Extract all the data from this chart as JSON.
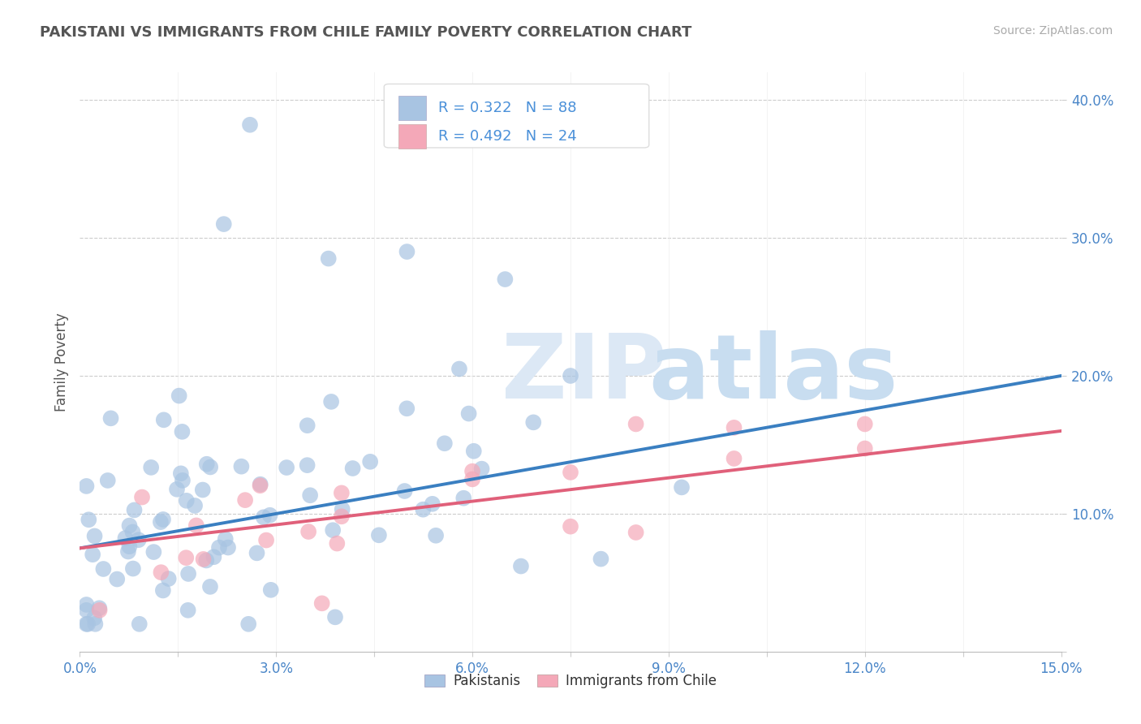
{
  "title": "PAKISTANI VS IMMIGRANTS FROM CHILE FAMILY POVERTY CORRELATION CHART",
  "source": "Source: ZipAtlas.com",
  "ylabel": "Family Poverty",
  "xlim": [
    0.0,
    0.15
  ],
  "ylim": [
    0.0,
    0.42
  ],
  "xticks": [
    0.0,
    0.015,
    0.03,
    0.045,
    0.06,
    0.075,
    0.09,
    0.105,
    0.12,
    0.135,
    0.15
  ],
  "xtick_labels": [
    "0.0%",
    "",
    "3.0%",
    "",
    "6.0%",
    "",
    "9.0%",
    "",
    "12.0%",
    "",
    "15.0%"
  ],
  "yticks": [
    0.0,
    0.1,
    0.2,
    0.3,
    0.4
  ],
  "ytick_labels": [
    "",
    "10.0%",
    "20.0%",
    "30.0%",
    "40.0%"
  ],
  "pakistani_R": 0.322,
  "pakistani_N": 88,
  "chile_R": 0.492,
  "chile_N": 24,
  "pakistani_color": "#a8c4e2",
  "chile_color": "#f4a8b8",
  "pakistani_line_color": "#3a7fc1",
  "chile_line_color": "#e0607a",
  "legend_text_color": "#4a90d9",
  "tick_color": "#4a86c8",
  "background_color": "#ffffff",
  "grid_color": "#cccccc",
  "title_color": "#555555",
  "ylabel_color": "#555555",
  "source_color": "#aaaaaa"
}
